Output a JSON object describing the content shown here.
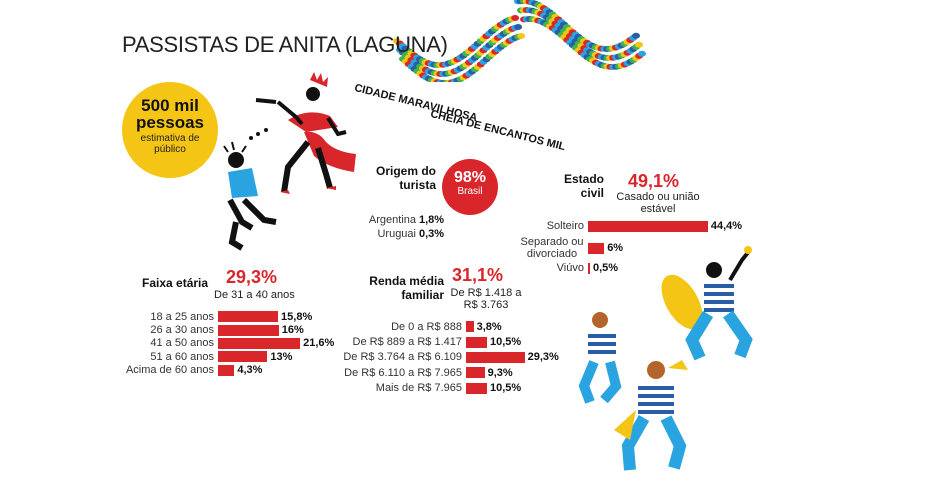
{
  "title": "PASSISTAS DE ANITA (LAGUNA)",
  "badge": {
    "value": "500 mil pessoas",
    "caption": "estimativa de público"
  },
  "slogan": {
    "line1": "CIDADE MARAVILHOSA",
    "line2": "CHEIA DE ENCANTOS MIL"
  },
  "origem": {
    "label": "Origem do turista",
    "main_value": "98%",
    "main_label": "Brasil",
    "others": [
      {
        "label": "Argentina",
        "value": "1,8%"
      },
      {
        "label": "Uruguai",
        "value": "0,3%"
      }
    ]
  },
  "colors": {
    "accent": "#d9262b",
    "badge": "#f5c516"
  },
  "chart_data": [
    {
      "type": "bar",
      "title": "Faixa etária",
      "highlight": {
        "value": "29,3%",
        "label": "De 31 a 40 anos"
      },
      "categories": [
        "18 a 25 anos",
        "26 a 30 anos",
        "41 a 50 anos",
        "51 a 60 anos",
        "Acima de 60 anos"
      ],
      "values": [
        15.8,
        16,
        21.6,
        13,
        4.3
      ],
      "value_labels": [
        "15,8%",
        "16%",
        "21,6%",
        "13%",
        "4,3%"
      ],
      "orientation": "horizontal"
    },
    {
      "type": "bar",
      "title": "Renda média familiar",
      "highlight": {
        "value": "31,1%",
        "label": "De R$ 1.418 a R$ 3.763"
      },
      "categories": [
        "De 0 a R$ 888",
        "De R$ 889 a R$ 1.417",
        "De R$ 3.764 a R$ 6.109",
        "De R$ 6.110 a R$ 7.965",
        "Mais de R$ 7.965"
      ],
      "values": [
        3.8,
        10.5,
        29.3,
        9.3,
        10.5
      ],
      "value_labels": [
        "3,8%",
        "10,5%",
        "29,3%",
        "9,3%",
        "10,5%"
      ],
      "orientation": "horizontal"
    },
    {
      "type": "bar",
      "title": "Estado civil",
      "highlight": {
        "value": "49,1%",
        "label": "Casado ou união estável"
      },
      "categories": [
        "Solteiro",
        "Separado ou divorciado",
        "Viúvo"
      ],
      "values": [
        44.4,
        6,
        0.5
      ],
      "value_labels": [
        "44,4%",
        "6%",
        "0,5%"
      ],
      "orientation": "horizontal"
    }
  ]
}
